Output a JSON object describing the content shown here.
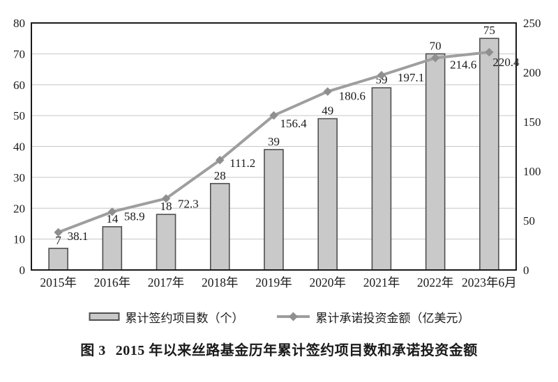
{
  "chart_data": {
    "type": "bar+line combo",
    "title": "图 3  2015 年以来丝路基金历年累计签约项目数和承诺投资金额",
    "categories": [
      "2015年",
      "2016年",
      "2017年",
      "2018年",
      "2019年",
      "2020年",
      "2021年",
      "2022年",
      "2023年6月"
    ],
    "series": [
      {
        "name": "累计签约项目数（个）",
        "type": "bar",
        "axis": "left",
        "values": [
          7,
          14,
          18,
          28,
          39,
          49,
          59,
          70,
          75
        ]
      },
      {
        "name": "累计承诺投资金额（亿美元）",
        "type": "line",
        "axis": "right",
        "values": [
          38.1,
          58.9,
          72.3,
          111.2,
          156.4,
          180.6,
          197.1,
          214.6,
          220.4
        ]
      }
    ],
    "left_axis": {
      "min": 0,
      "max": 80,
      "ticks": [
        0,
        10,
        20,
        30,
        40,
        50,
        60,
        70,
        80
      ]
    },
    "right_axis": {
      "min": 0,
      "max": 250,
      "ticks": [
        0,
        50,
        100,
        150,
        200,
        250
      ]
    },
    "grid": true,
    "legend_position": "bottom"
  },
  "caption": {
    "prefix": "图 3",
    "text": "2015 年以来丝路基金历年累计签约项目数和承诺投资金额"
  },
  "colors": {
    "bar_fill": "#c9c9c9",
    "bar_stroke": "#4f4f4f",
    "line": "#9e9e9e",
    "marker": "#8f8f8f",
    "grid": "#c6c6c6",
    "plot_border": "#1a1a1a",
    "text": "#1a1a1a",
    "background": "#ffffff"
  }
}
